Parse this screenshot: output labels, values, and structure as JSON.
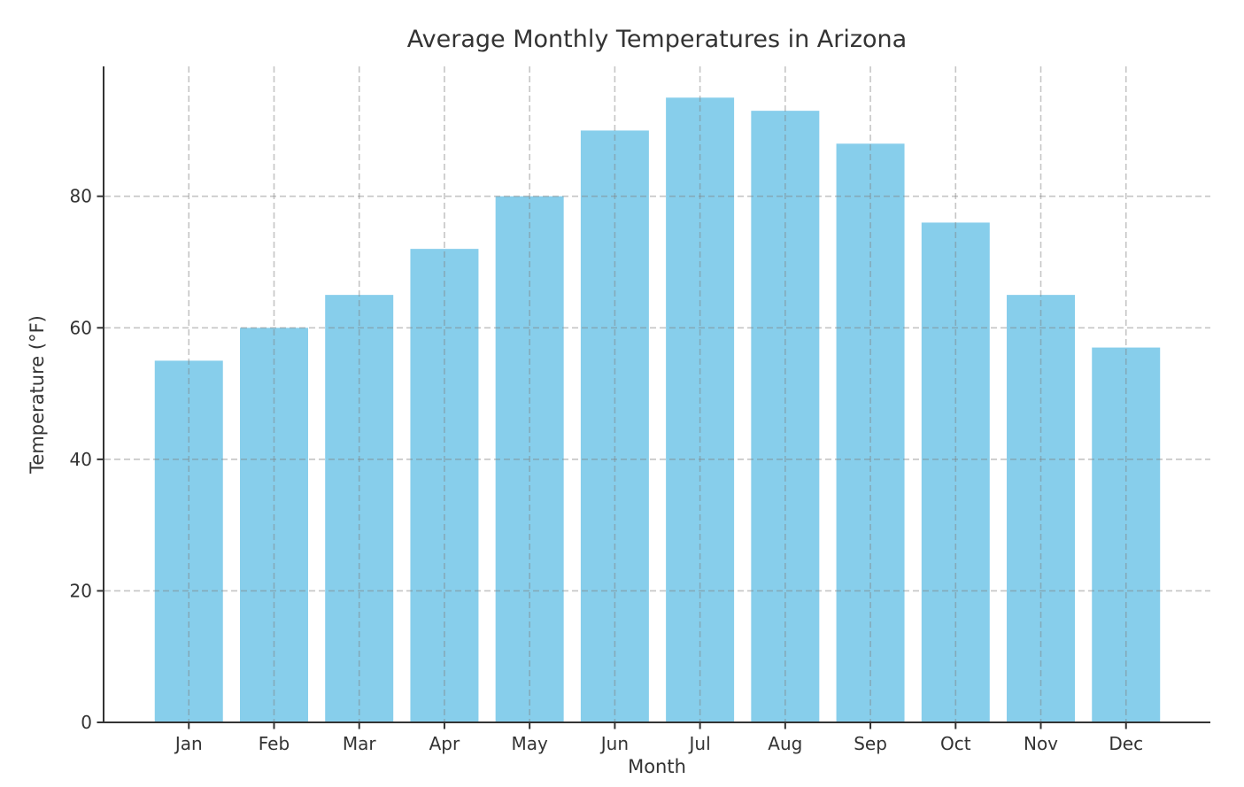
{
  "figure": {
    "background_color": "#ffffff"
  },
  "chart_data": {
    "type": "bar",
    "title": "Average Monthly Temperatures in Arizona",
    "xlabel": "Month",
    "ylabel": "Temperature (°F)",
    "categories": [
      "Jan",
      "Feb",
      "Mar",
      "Apr",
      "May",
      "Jun",
      "Jul",
      "Aug",
      "Sep",
      "Oct",
      "Nov",
      "Dec"
    ],
    "values": [
      55,
      60,
      65,
      72,
      80,
      90,
      95,
      93,
      88,
      76,
      65,
      57
    ],
    "yticks": [
      0,
      20,
      40,
      60,
      80
    ],
    "ylim": [
      0,
      99.75
    ],
    "bar_color": "#87CEEB",
    "grid": true,
    "grid_line_style": "dashed",
    "grid_color": "#808080",
    "grid_opacity": 0.45,
    "axis_color": "#333333",
    "text_color": "#333333",
    "legend": "none"
  }
}
